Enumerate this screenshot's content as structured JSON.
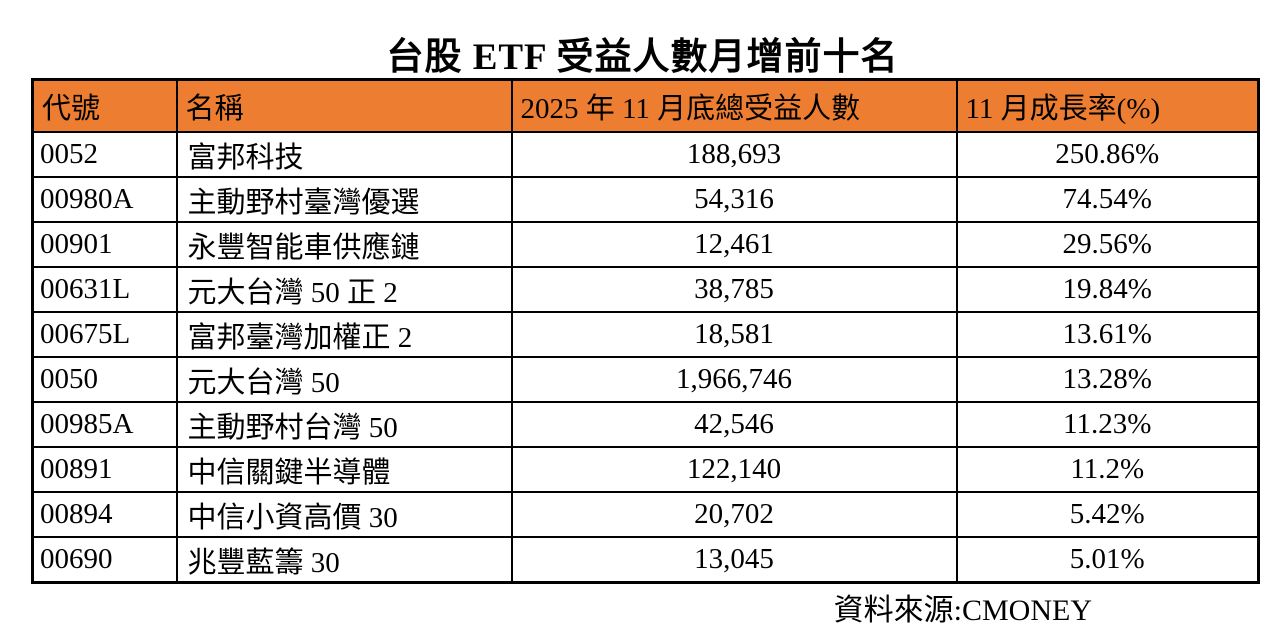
{
  "title": "台股 ETF 受益人數月增前十名",
  "source_note": "資料來源:CMONEY",
  "colors": {
    "header_bg": "#ED7D31",
    "border": "#000000",
    "text": "#000000"
  },
  "chart_data": {
    "type": "table",
    "title": "台股 ETF 受益人數月增前十名",
    "columns": [
      "代號",
      "名稱",
      "2025 年 11 月底總受益人數",
      "11 月成長率(%)"
    ],
    "rows": [
      {
        "code": "0052",
        "name": "富邦科技",
        "holders": "188,693",
        "growth": "250.86%"
      },
      {
        "code": "00980A",
        "name": "主動野村臺灣優選",
        "holders": "54,316",
        "growth": "74.54%"
      },
      {
        "code": "00901",
        "name": "永豐智能車供應鏈",
        "holders": "12,461",
        "growth": "29.56%"
      },
      {
        "code": "00631L",
        "name": "元大台灣 50 正 2",
        "holders": "38,785",
        "growth": "19.84%"
      },
      {
        "code": "00675L",
        "name": "富邦臺灣加權正 2",
        "holders": "18,581",
        "growth": "13.61%"
      },
      {
        "code": "0050",
        "name": "元大台灣 50",
        "holders": "1,966,746",
        "growth": "13.28%"
      },
      {
        "code": "00985A",
        "name": "主動野村台灣 50",
        "holders": "42,546",
        "growth": "11.23%"
      },
      {
        "code": "00891",
        "name": "中信關鍵半導體",
        "holders": "122,140",
        "growth": "11.2%"
      },
      {
        "code": "00894",
        "name": "中信小資高價 30",
        "holders": "20,702",
        "growth": "5.42%"
      },
      {
        "code": "00690",
        "name": "兆豐藍籌 30",
        "holders": "13,045",
        "growth": "5.01%"
      }
    ],
    "source": "資料來源:CMONEY",
    "layout": {
      "header_style": "orange-filled",
      "grid": true
    }
  }
}
